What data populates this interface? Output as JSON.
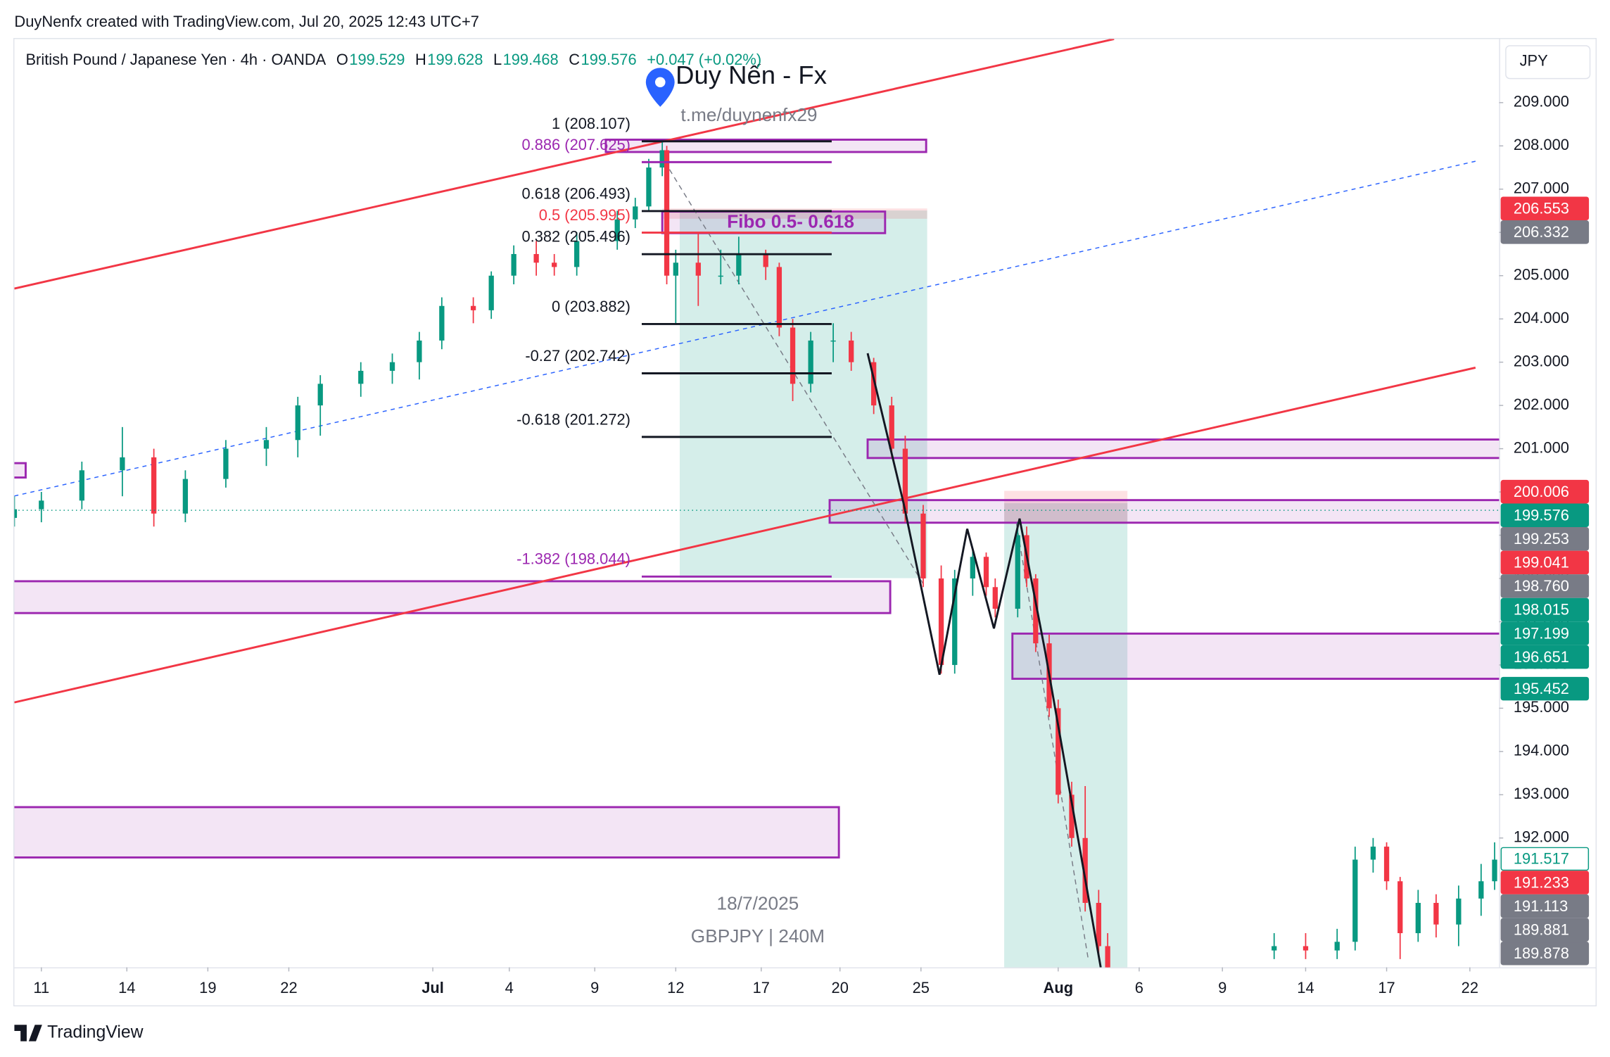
{
  "header": {
    "credit": "DuyNenfx created with TradingView.com, Jul 20, 2025 12:43 UTC+7"
  },
  "footer": {
    "brand": "TradingView"
  },
  "chart_data": {
    "type": "candlestick",
    "title": "British Pound / Japanese Yen · 4h · OANDA",
    "ohlc": [
      {
        "key": "O",
        "value": 199.529
      },
      {
        "key": "H",
        "value": 199.628
      },
      {
        "key": "L",
        "value": 199.468
      },
      {
        "key": "C",
        "value": 199.576
      }
    ],
    "change": "+0.047 (+0.02%)",
    "currency": "JPY",
    "annotations": {
      "watermark": "Duy Nến - Fx",
      "link": "t.me/duynenfx29",
      "zone": "Fibo 0.5- 0.618",
      "date": "18/7/2025",
      "symbol": "GBPJPY | 240M"
    },
    "up_color": "#089981",
    "down_color": "#f23645",
    "x": [
      0,
      6,
      15,
      24,
      31,
      38,
      47,
      56,
      63,
      68,
      77,
      84,
      90,
      95,
      102,
      106,
      111,
      116,
      120,
      125,
      134,
      138,
      141,
      144,
      145,
      147,
      152,
      157,
      161,
      167,
      170,
      173,
      177,
      182,
      186,
      191,
      195,
      198,
      202,
      206,
      209,
      213,
      216,
      218,
      223,
      225,
      227,
      230,
      232,
      235,
      238,
      241,
      243,
      280,
      287,
      294,
      298,
      302,
      305,
      308,
      312,
      316,
      321,
      326,
      329
    ],
    "open": [
      199.4,
      199.6,
      199.8,
      200.5,
      200.8,
      199.5,
      200.3,
      201.0,
      201.2,
      202.0,
      202.5,
      202.8,
      203.0,
      203.5,
      204.3,
      204.2,
      205.0,
      205.5,
      205.3,
      205.2,
      205.8,
      206.3,
      206.6,
      207.5,
      207.9,
      205.0,
      205.3,
      205.0,
      205.0,
      205.5,
      205.2,
      203.8,
      202.5,
      203.5,
      203.5,
      203.0,
      202.0,
      201.0,
      199.5,
      198.0,
      196.0,
      198.0,
      198.5,
      197.8,
      197.3,
      199.0,
      198.0,
      196.5,
      195.0,
      193.0,
      192.0,
      190.5,
      189.5,
      189.4,
      189.5,
      189.4,
      189.6,
      191.5,
      191.8,
      191.0,
      189.8,
      190.5,
      190.0,
      190.6,
      191.0
    ],
    "high": [
      199.9,
      200.0,
      200.7,
      201.5,
      201.0,
      200.5,
      201.2,
      201.5,
      202.2,
      202.7,
      203.0,
      203.2,
      203.7,
      204.5,
      204.5,
      205.1,
      205.7,
      205.8,
      205.5,
      206.0,
      206.5,
      206.8,
      207.7,
      208.1,
      208.0,
      205.6,
      206.0,
      205.6,
      205.9,
      205.6,
      205.3,
      204.0,
      203.7,
      203.9,
      203.7,
      203.1,
      202.2,
      201.3,
      199.7,
      198.3,
      198.2,
      198.7,
      198.6,
      198.0,
      199.3,
      199.2,
      198.1,
      196.7,
      195.2,
      193.3,
      193.2,
      190.8,
      189.8,
      189.8,
      189.8,
      189.9,
      191.8,
      192.0,
      191.9,
      191.1,
      190.8,
      190.7,
      190.9,
      191.4,
      191.9
    ],
    "low": [
      199.2,
      199.3,
      199.6,
      199.9,
      199.2,
      199.3,
      200.1,
      200.6,
      200.8,
      201.3,
      202.2,
      202.5,
      202.6,
      203.3,
      203.9,
      204.0,
      204.8,
      205.0,
      205.0,
      205.0,
      205.6,
      206.1,
      206.5,
      207.3,
      204.8,
      203.9,
      204.3,
      204.8,
      204.8,
      204.9,
      203.6,
      202.1,
      202.3,
      203.0,
      202.8,
      201.8,
      200.8,
      199.3,
      197.8,
      195.8,
      195.8,
      197.6,
      197.6,
      197.1,
      197.1,
      197.8,
      196.3,
      194.8,
      192.8,
      191.8,
      190.3,
      189.3,
      188.9,
      189.2,
      189.2,
      189.2,
      189.4,
      191.2,
      190.8,
      189.2,
      189.6,
      189.7,
      189.5,
      190.2,
      190.8
    ],
    "close": [
      199.6,
      199.8,
      200.5,
      200.8,
      199.5,
      200.3,
      201.0,
      201.2,
      202.0,
      202.5,
      202.8,
      203.0,
      203.5,
      204.3,
      204.2,
      205.0,
      205.5,
      205.3,
      205.2,
      205.8,
      206.3,
      206.6,
      207.5,
      207.9,
      205.0,
      205.3,
      205.0,
      205.0,
      205.5,
      205.2,
      203.8,
      202.5,
      203.5,
      203.5,
      203.0,
      202.0,
      201.0,
      199.5,
      198.0,
      196.0,
      198.0,
      198.5,
      197.8,
      197.3,
      199.0,
      198.0,
      196.5,
      195.0,
      193.0,
      192.0,
      190.5,
      189.5,
      189.0,
      189.5,
      189.4,
      189.6,
      191.5,
      191.8,
      191.0,
      189.8,
      190.5,
      190.0,
      190.6,
      191.0,
      191.5
    ],
    "xlim": [
      0,
      330
    ],
    "ylim": [
      189.01,
      210.47
    ],
    "xticks": [
      {
        "value": 6,
        "label": "11"
      },
      {
        "value": 25,
        "label": "14"
      },
      {
        "value": 43,
        "label": "19"
      },
      {
        "value": 61,
        "label": "22"
      },
      {
        "value": 93,
        "label": "Jul"
      },
      {
        "value": 110,
        "label": "4"
      },
      {
        "value": 129,
        "label": "9"
      },
      {
        "value": 147,
        "label": "12"
      },
      {
        "value": 166,
        "label": "17"
      },
      {
        "value": 183.5,
        "label": "20"
      },
      {
        "value": 201.5,
        "label": "25"
      },
      {
        "value": 232,
        "label": "Aug"
      },
      {
        "value": 250,
        "label": "6"
      },
      {
        "value": 268.5,
        "label": "9"
      },
      {
        "value": 287,
        "label": "14"
      },
      {
        "value": 305,
        "label": "17"
      },
      {
        "value": 323.5,
        "label": "22"
      }
    ],
    "yticks": [
      {
        "value": 192,
        "label": "192.000"
      },
      {
        "value": 193,
        "label": "193.000"
      },
      {
        "value": 194,
        "label": "194.000"
      },
      {
        "value": 195,
        "label": "195.000"
      },
      {
        "value": 196,
        "label": "196.000"
      },
      {
        "value": 197,
        "label": "197.000"
      },
      {
        "value": 198,
        "label": "198.000"
      },
      {
        "value": 199,
        "label": "199.000"
      },
      {
        "value": 200,
        "label": "200.000"
      },
      {
        "value": 201,
        "label": "201.000"
      },
      {
        "value": 202,
        "label": "202.000"
      },
      {
        "value": 203,
        "label": "203.000"
      },
      {
        "value": 204,
        "label": "204.000"
      },
      {
        "value": 205,
        "label": "205.000"
      },
      {
        "value": 206,
        "label": "206.000"
      },
      {
        "value": 207,
        "label": "207.000"
      },
      {
        "value": 208,
        "label": "208.000"
      },
      {
        "value": 209,
        "label": "209.000"
      }
    ],
    "fib_levels": [
      {
        "label": "1 (208.107)",
        "value": 208.107,
        "color": "#131722"
      },
      {
        "label": "0.886 (207.625)",
        "value": 207.625,
        "color": "#9c27b0"
      },
      {
        "label": "0.618 (206.493)",
        "value": 206.493,
        "color": "#131722"
      },
      {
        "label": "0.5 (205.995)",
        "value": 205.995,
        "color": "#f23645"
      },
      {
        "label": "0.382 (205.496)",
        "value": 205.496,
        "color": "#131722"
      },
      {
        "label": "0 (203.882)",
        "value": 203.882,
        "color": "#131722"
      },
      {
        "label": "-0.27 (202.742)",
        "value": 202.742,
        "color": "#131722"
      },
      {
        "label": "-0.618 (201.272)",
        "value": 201.272,
        "color": "#131722"
      },
      {
        "label": "-1.382 (198.044)",
        "value": 198.044,
        "color": "#9c27b0"
      }
    ],
    "price_tags": [
      {
        "value": 206.553,
        "color": "#f23645"
      },
      {
        "value": 206.332,
        "color": "#787b86"
      },
      {
        "value": 200.006,
        "color": "#f23645"
      },
      {
        "value": 199.576,
        "color": "#089981"
      },
      {
        "value": 199.253,
        "color": "#787b86"
      },
      {
        "value": 199.041,
        "color": "#f23645"
      },
      {
        "value": 198.76,
        "label": "198.760",
        "color": "#787b86"
      },
      {
        "value": 198.015,
        "color": "#089981"
      },
      {
        "value": 197.199,
        "color": "#089981"
      },
      {
        "value": 196.651,
        "color": "#089981"
      },
      {
        "value": 195.452,
        "color": "#089981"
      },
      {
        "value": 191.517,
        "color": "#089981",
        "outline": true
      },
      {
        "value": 191.233,
        "color": "#f23645"
      },
      {
        "value": 191.113,
        "color": "#787b86"
      },
      {
        "value": 189.881,
        "color": "#787b86"
      },
      {
        "value": 189.878,
        "color": "#787b86"
      }
    ]
  }
}
